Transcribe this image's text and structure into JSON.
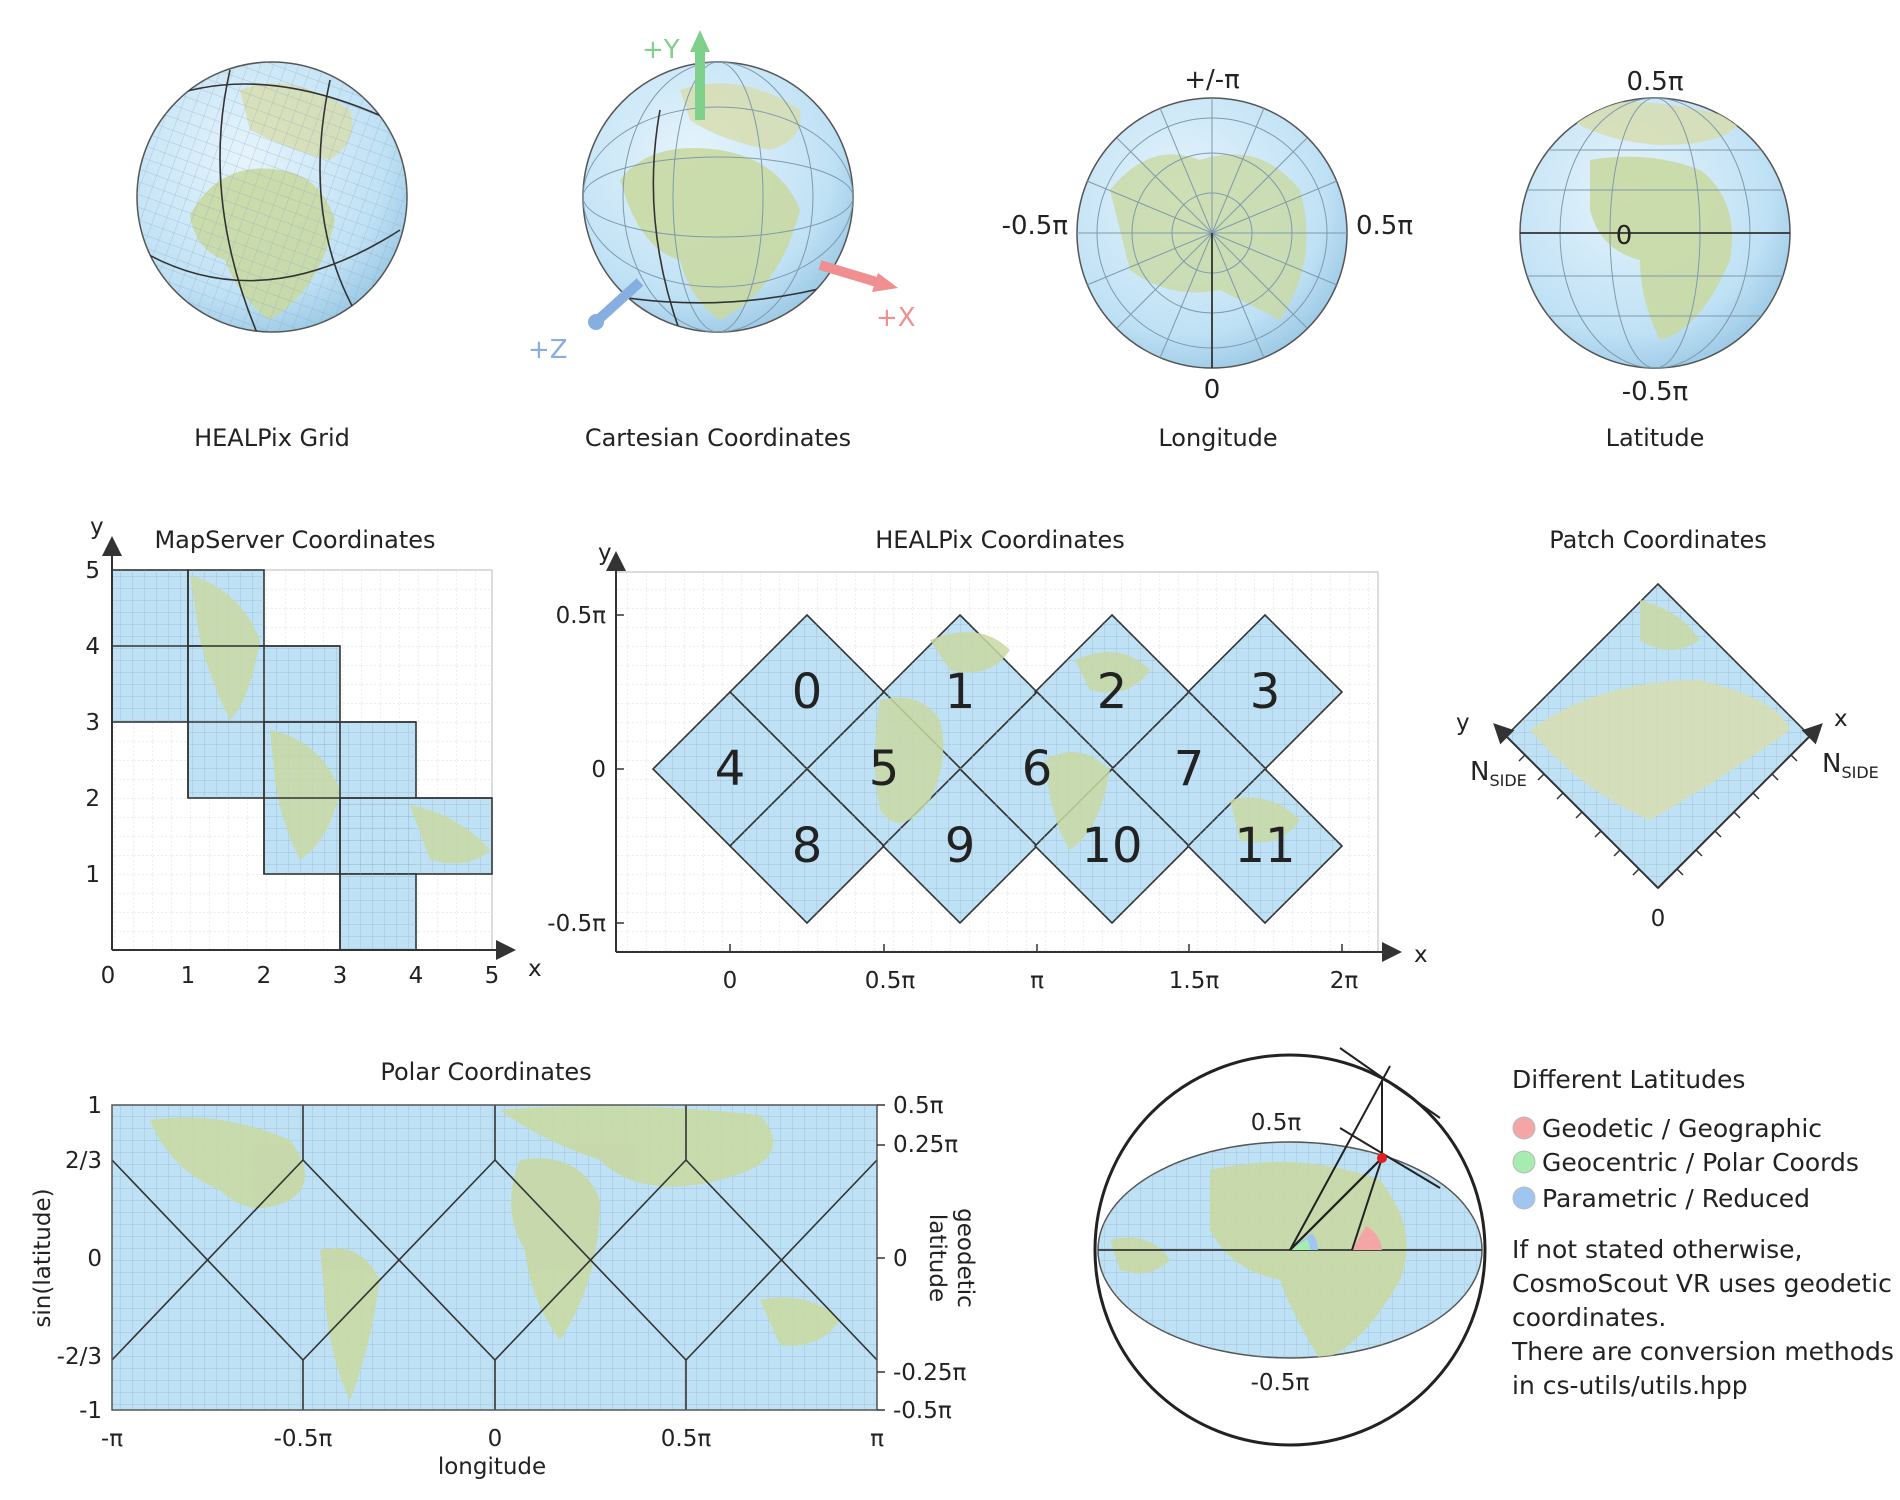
{
  "globes": {
    "healpix": {
      "caption": "HEALPix Grid"
    },
    "cartesian": {
      "caption": "Cartesian Coordinates",
      "axes": {
        "y": "+Y",
        "x": "+X",
        "z": "+Z"
      }
    },
    "longitude": {
      "caption": "Longitude",
      "labels": {
        "top": "+/-π",
        "left": "-0.5π",
        "right": "0.5π",
        "bottom": "0"
      }
    },
    "latitude": {
      "caption": "Latitude",
      "labels": {
        "top": "0.5π",
        "center": "0",
        "bottom": "-0.5π"
      }
    }
  },
  "mapserver": {
    "title": "MapServer Coordinates",
    "x_ticks": [
      "0",
      "1",
      "2",
      "3",
      "4",
      "5"
    ],
    "y_ticks": [
      "1",
      "2",
      "3",
      "4",
      "5"
    ],
    "xlabel": "x",
    "ylabel": "y"
  },
  "healpix_coords": {
    "title": "HEALPix Coordinates",
    "x_ticks": [
      "0",
      "0.5π",
      "π",
      "1.5π",
      "2π"
    ],
    "y_ticks": [
      "0.5π",
      "0",
      "-0.5π"
    ],
    "xlabel": "x",
    "ylabel": "y",
    "faces": [
      "0",
      "1",
      "2",
      "3",
      "4",
      "5",
      "6",
      "7",
      "8",
      "9",
      "10",
      "11"
    ]
  },
  "patch": {
    "title": "Patch Coordinates",
    "xlabel": "x",
    "ylabel": "y",
    "nside": "N",
    "nside_sub": "SIDE",
    "origin": "0"
  },
  "polar": {
    "title": "Polar Coordinates",
    "x_ticks": [
      "-π",
      "-0.5π",
      "0",
      "0.5π",
      "π"
    ],
    "y_left_ticks": [
      "1",
      "2/3",
      "0",
      "-2/3",
      "-1"
    ],
    "y_right_ticks": [
      "0.5π",
      "0.25π",
      "0",
      "-0.25π",
      "-0.5π"
    ],
    "xlabel": "longitude",
    "ylabel_left": "sin(latitude)",
    "ylabel_right_1": "geodetic",
    "ylabel_right_2": "latitude"
  },
  "latitudes": {
    "diagram_top": "0.5π",
    "diagram_bottom": "-0.5π",
    "title": "Different  Latitudes",
    "items": [
      {
        "label": "Geodetic / Geographic",
        "color": "#f4a6a6"
      },
      {
        "label": "Geocentric / Polar Coords",
        "color": "#a6ebb0"
      },
      {
        "label": "Parametric / Reduced",
        "color": "#9fc6f0"
      }
    ],
    "note": [
      "If not stated otherwise,",
      "CosmoScout VR uses geodetic",
      "coordinates.",
      "There are conversion methods",
      "in cs-utils/utils.hpp"
    ]
  },
  "colors": {
    "ocean": "#bfe1f5",
    "land": "#c9d9a3",
    "grid": "#8aa6b8",
    "axis_y": "#7fd08a",
    "axis_x": "#ef8f8f",
    "axis_z": "#86aee0"
  }
}
